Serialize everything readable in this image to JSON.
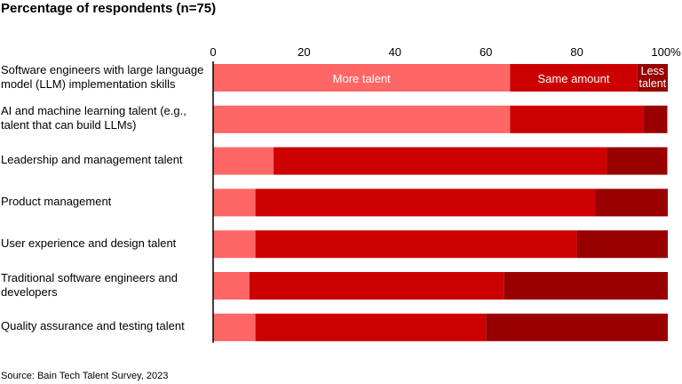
{
  "chart_data": {
    "type": "bar",
    "orientation": "horizontal",
    "stacked": true,
    "title": "Percentage of respondents (n=75)",
    "source": "Source: Bain Tech Talent Survey, 2023",
    "xlim": [
      0,
      100
    ],
    "xticks": [
      "0",
      "20",
      "40",
      "60",
      "80",
      "100%"
    ],
    "grid": false,
    "categories": [
      "Software engineers with large language model (LLM) implementation skills",
      "AI and machine learning talent (e.g., talent that can build LLMs)",
      "Leadership and management talent",
      "Product management",
      "User experience and design talent",
      "Traditional software engineers and developers",
      "Quality assurance and testing talent"
    ],
    "series": [
      {
        "name": "More talent",
        "color": "#ff6666",
        "values": [
          65.3,
          65.3,
          13.3,
          9.3,
          9.3,
          8.0,
          9.3
        ]
      },
      {
        "name": "Same amount",
        "color": "#cc0000",
        "values": [
          28.0,
          29.3,
          73.3,
          74.7,
          70.7,
          56.0,
          50.7
        ]
      },
      {
        "name": "Less talent",
        "color": "#990000",
        "values": [
          6.7,
          5.3,
          13.3,
          16.0,
          20.0,
          36.0,
          40.0
        ]
      }
    ]
  }
}
